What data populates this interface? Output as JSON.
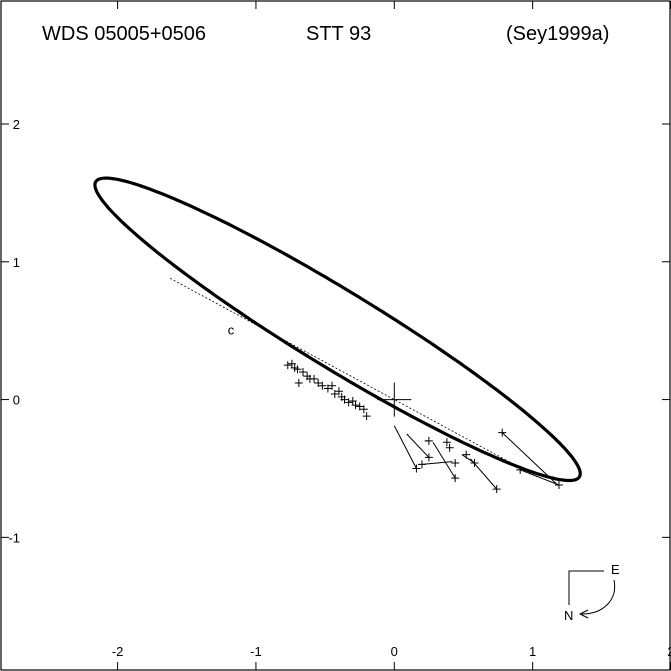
{
  "header": {
    "wds": "WDS 05005+0506",
    "name": "STT  93",
    "reference": "(Sey1999a)"
  },
  "compass": {
    "east": "E",
    "north": "N"
  },
  "chart_data": {
    "type": "scatter",
    "title": "",
    "xlabel": "",
    "ylabel": "",
    "xlim": [
      -2.85,
      2.0
    ],
    "ylim": [
      -1.97,
      2.9
    ],
    "x_ticks": [
      -2,
      -1,
      0,
      1,
      2
    ],
    "y_ticks": [
      -1,
      0,
      1,
      2
    ],
    "x_tick_labels": [
      "-2",
      "-1",
      "0",
      "1",
      "2"
    ],
    "y_tick_labels": [
      "-1",
      "0",
      "1",
      "2"
    ],
    "grid": false,
    "ellipse": {
      "center": [
        -0.41,
        0.51
      ],
      "semi_major": 2.05,
      "semi_minor": 0.28,
      "angle_deg": -31.5
    },
    "line_of_nodes": [
      [
        -1.62,
        0.88
      ],
      [
        1.03,
        -0.56
      ]
    ],
    "origin_marker": [
      0.0,
      0.0
    ],
    "periastron_marker": {
      "x": -1.18,
      "y": 0.5,
      "label": "c"
    },
    "observations": [
      {
        "x": -0.77,
        "y": 0.25
      },
      {
        "x": -0.74,
        "y": 0.26
      },
      {
        "x": -0.72,
        "y": 0.23
      },
      {
        "x": -0.7,
        "y": 0.22
      },
      {
        "x": -0.69,
        "y": 0.12
      },
      {
        "x": -0.66,
        "y": 0.2
      },
      {
        "x": -0.63,
        "y": 0.17
      },
      {
        "x": -0.61,
        "y": 0.15
      },
      {
        "x": -0.58,
        "y": 0.15
      },
      {
        "x": -0.55,
        "y": 0.12
      },
      {
        "x": -0.52,
        "y": 0.1
      },
      {
        "x": -0.48,
        "y": 0.08
      },
      {
        "x": -0.45,
        "y": 0.1
      },
      {
        "x": -0.43,
        "y": 0.04
      },
      {
        "x": -0.4,
        "y": 0.06
      },
      {
        "x": -0.38,
        "y": 0.02
      },
      {
        "x": -0.36,
        "y": 0.0
      },
      {
        "x": -0.33,
        "y": -0.02
      },
      {
        "x": -0.3,
        "y": -0.01
      },
      {
        "x": -0.28,
        "y": -0.04
      },
      {
        "x": -0.25,
        "y": -0.05
      },
      {
        "x": -0.22,
        "y": -0.07
      },
      {
        "x": -0.2,
        "y": -0.12
      },
      {
        "x": 0.16,
        "y": -0.5
      },
      {
        "x": 0.2,
        "y": -0.47
      },
      {
        "x": 0.25,
        "y": -0.42
      },
      {
        "x": 0.25,
        "y": -0.3
      },
      {
        "x": 0.38,
        "y": -0.31
      },
      {
        "x": 0.4,
        "y": -0.35
      },
      {
        "x": 0.44,
        "y": -0.46
      },
      {
        "x": 0.44,
        "y": -0.57
      },
      {
        "x": 0.52,
        "y": -0.4
      },
      {
        "x": 0.58,
        "y": -0.46
      },
      {
        "x": 0.74,
        "y": -0.65
      },
      {
        "x": 0.78,
        "y": -0.24
      },
      {
        "x": 0.91,
        "y": -0.51
      },
      {
        "x": 1.19,
        "y": -0.62
      }
    ],
    "residuals": [
      [
        [
          0.16,
          -0.5
        ],
        [
          0.0,
          -0.19
        ]
      ],
      [
        [
          0.25,
          -0.42
        ],
        [
          0.09,
          -0.25
        ]
      ],
      [
        [
          0.25,
          -0.3
        ],
        [
          0.22,
          -0.3
        ]
      ],
      [
        [
          0.44,
          -0.57
        ],
        [
          0.28,
          -0.31
        ]
      ],
      [
        [
          0.58,
          -0.46
        ],
        [
          0.49,
          -0.4
        ]
      ],
      [
        [
          0.74,
          -0.65
        ],
        [
          0.55,
          -0.43
        ]
      ],
      [
        [
          1.19,
          -0.62
        ],
        [
          0.91,
          -0.51
        ]
      ],
      [
        [
          0.78,
          -0.24
        ],
        [
          1.17,
          -0.61
        ]
      ],
      [
        [
          0.2,
          -0.47
        ],
        [
          0.42,
          -0.45
        ]
      ]
    ]
  }
}
